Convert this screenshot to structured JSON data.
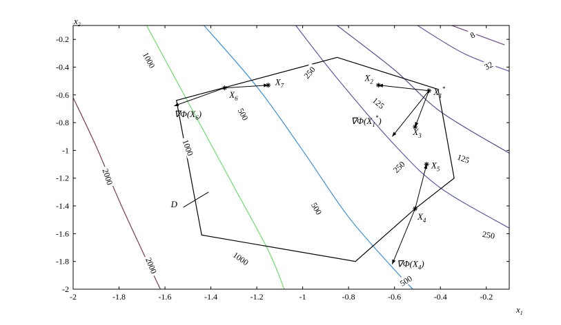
{
  "chart_data": {
    "type": "contour",
    "x_axis_label": "x1",
    "y_axis_label": "x2",
    "xlim": [
      -2,
      -0.1
    ],
    "ylim": [
      -2,
      -0.1
    ],
    "xticks": [
      "-2",
      "-1.8",
      "-1.6",
      "-1.4",
      "-1.2",
      "-1",
      "-0.8",
      "-0.6",
      "-0.4",
      "-0.2"
    ],
    "yticks": [
      "-0.2",
      "-0.4",
      "-0.6",
      "-0.8",
      "-1",
      "-1.2",
      "-1.4",
      "-1.6",
      "-1.8",
      "-2"
    ],
    "contours": [
      {
        "level": "8",
        "color": "#6a4f8a",
        "points": [
          [
            -0.35,
            -0.1
          ],
          [
            -0.12,
            -0.24
          ]
        ]
      },
      {
        "level": "32",
        "color": "#6a5a9e",
        "points": [
          [
            -0.5,
            -0.1
          ],
          [
            -0.3,
            -0.3
          ],
          [
            -0.1,
            -0.43
          ]
        ]
      },
      {
        "level": "125",
        "color": "#52508c",
        "points": [
          [
            -0.85,
            -0.1
          ],
          [
            -0.6,
            -0.42
          ],
          [
            -0.4,
            -0.72
          ],
          [
            -0.1,
            -1.02
          ]
        ]
      },
      {
        "level": "250",
        "color": "#5a5aa0",
        "points": [
          [
            -1.03,
            -0.1
          ],
          [
            -0.85,
            -0.48
          ],
          [
            -0.6,
            -0.96
          ],
          [
            -0.4,
            -1.27
          ],
          [
            -0.1,
            -1.56
          ]
        ]
      },
      {
        "level": "500",
        "color": "#3a8fd6",
        "points": [
          [
            -1.43,
            -0.1
          ],
          [
            -1.2,
            -0.54
          ],
          [
            -1,
            -1.0
          ],
          [
            -0.8,
            -1.48
          ],
          [
            -0.6,
            -1.86
          ],
          [
            -0.52,
            -2.0
          ]
        ]
      },
      {
        "level": "1000",
        "color": "#6fdc6f",
        "points": [
          [
            -1.68,
            -0.1
          ],
          [
            -1.5,
            -0.65
          ],
          [
            -1.3,
            -1.26
          ],
          [
            -1.15,
            -1.72
          ],
          [
            -1.08,
            -2.0
          ]
        ]
      },
      {
        "level": "2000",
        "color": "#7a3a4a",
        "points": [
          [
            -2.0,
            -0.62
          ],
          [
            -1.9,
            -0.97
          ],
          [
            -1.8,
            -1.36
          ],
          [
            -1.7,
            -1.72
          ],
          [
            -1.62,
            -2.0
          ]
        ]
      }
    ],
    "contour_labels": [
      {
        "text": "8",
        "x": -0.26,
        "y": -0.17,
        "angle": -28
      },
      {
        "text": "32",
        "x": -0.19,
        "y": -0.39,
        "angle": -28
      },
      {
        "text": "125",
        "x": -0.67,
        "y": -0.66,
        "angle": 40
      },
      {
        "text": "125",
        "x": -0.3,
        "y": -1.06,
        "angle": 20
      },
      {
        "text": "250",
        "x": -0.97,
        "y": -0.44,
        "angle": -50
      },
      {
        "text": "250",
        "x": -0.58,
        "y": -1.12,
        "angle": -45
      },
      {
        "text": "250",
        "x": -0.19,
        "y": -1.61,
        "angle": 10
      },
      {
        "text": "500",
        "x": -1.26,
        "y": -0.74,
        "angle": 62
      },
      {
        "text": "500",
        "x": -0.94,
        "y": -1.42,
        "angle": 60
      },
      {
        "text": "500",
        "x": -0.55,
        "y": -1.94,
        "angle": -32
      },
      {
        "text": "1000",
        "x": -1.67,
        "y": -0.35,
        "angle": 62
      },
      {
        "text": "1000",
        "x": -1.5,
        "y": -0.98,
        "angle": 70
      },
      {
        "text": "1000",
        "x": -1.27,
        "y": -1.78,
        "angle": 35
      },
      {
        "text": "2000",
        "x": -1.85,
        "y": -1.19,
        "angle": 72
      },
      {
        "text": "2000",
        "x": -1.66,
        "y": -1.83,
        "angle": 68
      }
    ],
    "region": {
      "name": "D",
      "vertices": [
        [
          -0.85,
          -0.33
        ],
        [
          -0.41,
          -0.56
        ],
        [
          -0.34,
          -1.2
        ],
        [
          -0.51,
          -1.42
        ],
        [
          -0.77,
          -1.8
        ],
        [
          -1.44,
          -1.61
        ],
        [
          -1.55,
          -0.64
        ]
      ],
      "label_x": -1.56,
      "label_y": -1.41,
      "leader": [
        [
          -1.52,
          -1.41
        ],
        [
          -1.41,
          -1.3
        ]
      ]
    },
    "points": [
      {
        "name": "X1*",
        "x": -0.45,
        "y": -0.57
      },
      {
        "name": "X2",
        "x": -0.67,
        "y": -0.53
      },
      {
        "name": "X3",
        "x": -0.51,
        "y": -0.83
      },
      {
        "name": "X4",
        "x": -0.51,
        "y": -1.42
      },
      {
        "name": "X5",
        "x": -0.46,
        "y": -1.1
      },
      {
        "name": "X6",
        "x": -1.34,
        "y": -0.55
      },
      {
        "name": "X7",
        "x": -1.15,
        "y": -0.53
      }
    ],
    "arrows": [
      {
        "from": [
          -0.45,
          -0.57
        ],
        "to": [
          -0.67,
          -0.53
        ]
      },
      {
        "from": [
          -0.45,
          -0.57
        ],
        "to": [
          -0.51,
          -0.83
        ]
      },
      {
        "from": [
          -0.45,
          -0.57
        ],
        "to": [
          -0.61,
          -0.9
        ]
      },
      {
        "from": [
          -0.51,
          -1.42
        ],
        "to": [
          -0.46,
          -1.1
        ]
      },
      {
        "from": [
          -0.51,
          -1.42
        ],
        "to": [
          -0.61,
          -1.82
        ]
      },
      {
        "from": [
          -1.34,
          -0.55
        ],
        "to": [
          -1.15,
          -0.53
        ]
      },
      {
        "from": [
          -1.34,
          -0.55
        ],
        "to": [
          -1.56,
          -0.68
        ]
      }
    ],
    "annotations": [
      {
        "text": "X",
        "sub": "1",
        "sup": "*",
        "x": -0.43,
        "y": -0.6
      },
      {
        "text": "X",
        "sub": "2",
        "sup": "",
        "x": -0.73,
        "y": -0.5
      },
      {
        "text": "X",
        "sub": "3",
        "sup": "",
        "x": -0.52,
        "y": -0.89
      },
      {
        "text": "X",
        "sub": "4",
        "sup": "",
        "x": -0.5,
        "y": -1.5
      },
      {
        "text": "X",
        "sub": "5",
        "sup": "",
        "x": -0.44,
        "y": -1.13
      },
      {
        "text": "X",
        "sub": "6",
        "sup": "",
        "x": -1.32,
        "y": -0.62
      },
      {
        "text": "X",
        "sub": "7",
        "sup": "",
        "x": -1.12,
        "y": -0.53
      },
      {
        "text": "∇Φ(X",
        "sub": "1",
        "sup": "*",
        "tail": ")",
        "x": -0.79,
        "y": -0.81
      },
      {
        "text": "∇Φ(X",
        "sub": "4",
        "sup": "",
        "tail": ")",
        "x": -0.59,
        "y": -1.84
      },
      {
        "text": "∇Φ(X",
        "sub": "6",
        "sup": "",
        "tail": ")",
        "x": -1.56,
        "y": -0.76
      }
    ]
  }
}
